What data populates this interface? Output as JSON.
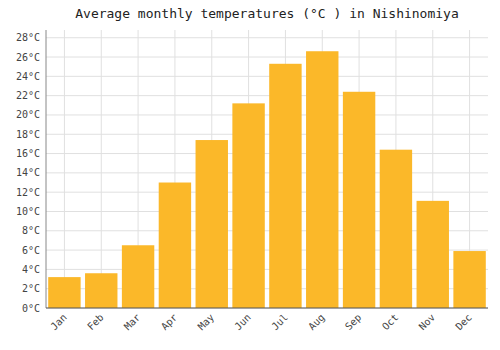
{
  "chart_data": {
    "type": "bar",
    "title": "Average monthly temperatures (°C ) in Nishinomiya",
    "categories": [
      "Jan",
      "Feb",
      "Mar",
      "Apr",
      "May",
      "Jun",
      "Jul",
      "Aug",
      "Sep",
      "Oct",
      "Nov",
      "Dec"
    ],
    "values": [
      3.2,
      3.6,
      6.5,
      13.0,
      17.4,
      21.2,
      25.3,
      26.6,
      22.4,
      16.4,
      11.1,
      5.9
    ],
    "color": "#FBB829",
    "ylim": [
      0,
      28.8
    ],
    "yticks": [
      {
        "value": 0,
        "label": "0°C"
      },
      {
        "value": 2,
        "label": "2°C"
      },
      {
        "value": 4,
        "label": "4°C"
      },
      {
        "value": 6,
        "label": "6°C"
      },
      {
        "value": 8,
        "label": "8°C"
      },
      {
        "value": 10,
        "label": "10°C"
      },
      {
        "value": 12,
        "label": "12°C"
      },
      {
        "value": 14,
        "label": "14°C"
      },
      {
        "value": 16,
        "label": "16°C"
      },
      {
        "value": 18,
        "label": "18°C"
      },
      {
        "value": 20,
        "label": "20°C"
      },
      {
        "value": 22,
        "label": "22°C"
      },
      {
        "value": 24,
        "label": "24°C"
      },
      {
        "value": 26,
        "label": "26°C"
      },
      {
        "value": 28,
        "label": "28°C"
      }
    ],
    "grid": true
  }
}
